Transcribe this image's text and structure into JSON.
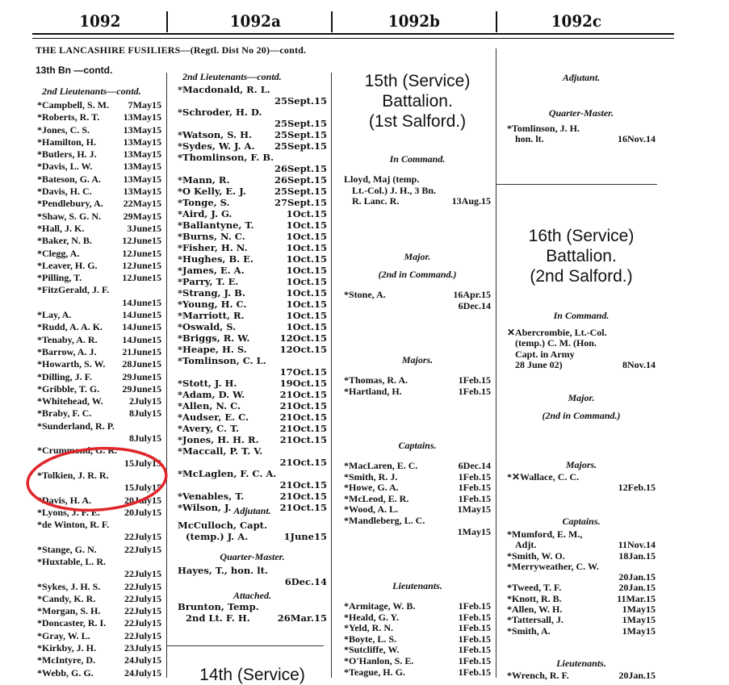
{
  "header": {
    "pages": [
      "1092",
      "1092a",
      "1092b",
      "1092c"
    ]
  },
  "regiment_title": "THE LANCASHIRE FUSILIERS—(Regtl. Dist No 20)—contd.",
  "battalion_contd": "13th Bn —contd.",
  "annotation": {
    "type": "red-ellipse",
    "color": "#e0262b",
    "encircles": "Tolkien, J. R. R."
  },
  "columns": [
    {
      "blocks": [
        {
          "type": "head",
          "text": "2nd Lieutenants—contd.",
          "left": true
        },
        {
          "type": "entries",
          "items": [
            {
              "n": "*Campbell, S. M.",
              "d": "7May15"
            },
            {
              "n": "*Roberts, R. T.",
              "d": "13May15"
            },
            {
              "n": "*Jones, C. S.",
              "d": "13May15"
            },
            {
              "n": "*Hamilton, H.",
              "d": "13May15"
            },
            {
              "n": "*Butlers, H. J.",
              "d": "13May15"
            },
            {
              "n": "*Davis, L. W.",
              "d": "13May15"
            },
            {
              "n": "*Bateson, G. A.",
              "d": "13May15"
            },
            {
              "n": "*Davis, H. C.",
              "d": "13May15"
            },
            {
              "n": "*Pendlebury, A.",
              "d": "22May15"
            },
            {
              "n": "*Shaw, S. G. N.",
              "d": "29May15"
            },
            {
              "n": "*Hall, J. K.",
              "d": "3June15"
            },
            {
              "n": "*Baker, N. B.",
              "d": "12June15"
            },
            {
              "n": "*Clegg, A.",
              "d": "12June15"
            },
            {
              "n": "*Leaver, H. G.",
              "d": "12June15"
            },
            {
              "n": "*Pilling, T.",
              "d": "12June15"
            },
            {
              "n": "*FitzGerald, J. F.",
              "d": "14June15",
              "w": true
            },
            {
              "n": "*Lay, A.",
              "d": "14June15"
            },
            {
              "n": "*Rudd, A. A. K.",
              "d": "14June15"
            },
            {
              "n": "*Tenaby, A. R.",
              "d": "14June15"
            },
            {
              "n": "*Barrow, A. J.",
              "d": "21June15"
            },
            {
              "n": "*Howarth, S. W.",
              "d": "28June15"
            },
            {
              "n": "*Dilling, J. F.",
              "d": "29June15"
            },
            {
              "n": "*Gribble, T. G.",
              "d": "29June15"
            },
            {
              "n": "*Whitehead, W.",
              "d": "2July15"
            },
            {
              "n": "*Braby, F. C.",
              "d": "8July15"
            },
            {
              "n": "*Sunderland, R. P.",
              "d": "8July15",
              "w": true
            },
            {
              "n": "*Crummond, G. R.",
              "d": "15July15",
              "w": true
            },
            {
              "n": "*Tolkien, J. R. R.",
              "d": "15July15",
              "w": true
            },
            {
              "n": "*Davis, H. A.",
              "d": "20July15"
            },
            {
              "n": "*Lyons, J. F. E.",
              "d": "20July15"
            },
            {
              "n": "*de Winton, R. F.",
              "d": "22July15",
              "w": true
            },
            {
              "n": "*Stange, G. N.",
              "d": "22July15"
            },
            {
              "n": "*Huxtable, L. R.",
              "d": "22July15",
              "w": true
            },
            {
              "n": "*Sykes, J. H. S.",
              "d": "22July15"
            },
            {
              "n": "*Candy, K. R.",
              "d": "22July15"
            },
            {
              "n": "*Morgan, S. H.",
              "d": "22July15"
            },
            {
              "n": "*Doncaster, R. I.",
              "d": "22July15"
            },
            {
              "n": "*Gray, W. L.",
              "d": "22July15"
            },
            {
              "n": "*Kirkby, J. H.",
              "d": "23July15"
            },
            {
              "n": "*McIntyre, D.",
              "d": "24July15"
            },
            {
              "n": "*Webb, G. G.",
              "d": "24July15"
            }
          ]
        }
      ]
    },
    {
      "blocks": [
        {
          "type": "head",
          "text": "2nd Lieutenants—contd.",
          "left": true
        },
        {
          "type": "entries",
          "items": [
            {
              "n": "*Macdonald, R. L.",
              "d": "25Sept.15",
              "w": true
            },
            {
              "n": "*Schroder, H. D.",
              "d": "25Sept.15",
              "w": true
            },
            {
              "n": "*Watson, S. H.",
              "d": "25Sept.15"
            },
            {
              "n": "*Sydes, W. J. A.",
              "d": "25Sept.15"
            },
            {
              "n": "*Thomlinson, F. B.",
              "d": "26Sept.15",
              "w": true
            },
            {
              "n": "*Mann, R.",
              "d": "26Sept.15"
            },
            {
              "n": "*O Kelly, E. J.",
              "d": "25Sept.15"
            },
            {
              "n": "*Tonge, S.",
              "d": "27Sept.15"
            },
            {
              "n": "*Aird, J. G.",
              "d": "1Oct.15"
            },
            {
              "n": "*Ballantyne, T.",
              "d": "1Oct.15"
            },
            {
              "n": "*Burns, N. C.",
              "d": "1Oct.15"
            },
            {
              "n": "*Fisher, H. N.",
              "d": "1Oct.15"
            },
            {
              "n": "*Hughes, B. E.",
              "d": "1Oct.15"
            },
            {
              "n": "*James, E. A.",
              "d": "1Oct.15"
            },
            {
              "n": "*Parry, T. E.",
              "d": "1Oct.15"
            },
            {
              "n": "*Strang, J. B.",
              "d": "1Oct.15"
            },
            {
              "n": "*Young, H. C.",
              "d": "1Oct.15"
            },
            {
              "n": "*Marriott, R.",
              "d": "1Oct.15"
            },
            {
              "n": "*Oswald, S.",
              "d": "1Oct.15"
            },
            {
              "n": "*Briggs, R. W.",
              "d": "12Oct.15"
            },
            {
              "n": "*Heape, H. S.",
              "d": "12Oct.15"
            },
            {
              "n": "*Tomlinson, C. L.",
              "d": "17Oct.15",
              "w": true
            },
            {
              "n": "*Stott, J. H.",
              "d": "19Oct.15"
            },
            {
              "n": "*Adam, D. W.",
              "d": "21Oct.15"
            },
            {
              "n": "*Allen, N. C.",
              "d": "21Oct.15"
            },
            {
              "n": "*Audser, E. C.",
              "d": "21Oct.15"
            },
            {
              "n": "*Avery, C. T.",
              "d": "21Oct.15"
            },
            {
              "n": "*Jones, H. H. R.",
              "d": "21Oct.15"
            },
            {
              "n": "*Maccall, P. T. V.",
              "d": "21Oct.15",
              "w": true
            },
            {
              "n": "*McLaglen, F. C. A.",
              "d": "21Oct.15",
              "w": true
            },
            {
              "n": "*Venables, T.",
              "d": "21Oct.15"
            },
            {
              "n": "*Wilson, J.",
              "d": "21Oct.15"
            }
          ]
        },
        {
          "type": "head",
          "text": "Adjutant."
        },
        {
          "type": "entries",
          "items": [
            {
              "n": "McCulloch, Capt.",
              "d": ""
            },
            {
              "n": "(temp.) J. A.",
              "d": "1June15",
              "i": true
            }
          ]
        },
        {
          "type": "head",
          "text": "Quarter-Master."
        },
        {
          "type": "entries",
          "items": [
            {
              "n": "Hayes, T., hon. lt.",
              "d": "6Dec.14",
              "w": true
            }
          ]
        },
        {
          "type": "head",
          "text": "Attached."
        },
        {
          "type": "entries",
          "items": [
            {
              "n": "Brunton, Temp.",
              "d": ""
            },
            {
              "n": "2nd Lt. F. H.",
              "d": "26Mar.15",
              "i": true
            }
          ]
        },
        {
          "type": "big",
          "lines": [
            "14th (Service)"
          ]
        }
      ]
    },
    {
      "blocks": [
        {
          "type": "big",
          "lines": [
            "15th (Service)",
            "Battalion.",
            "(1st Salford.)"
          ]
        },
        {
          "type": "head",
          "text": "In Command."
        },
        {
          "type": "entries",
          "items": [
            {
              "n": "Lloyd, Maj (temp.",
              "d": ""
            },
            {
              "n": "Lt.-Col.) J. H., 3 Bn.",
              "d": "",
              "i": true
            },
            {
              "n": "R. Lanc. R.",
              "d": "13Aug.15",
              "i": true
            }
          ]
        },
        {
          "type": "head",
          "text": "Major."
        },
        {
          "type": "head",
          "text": "(2nd in Command.)"
        },
        {
          "type": "entries",
          "items": [
            {
              "n": "*Stone, A.",
              "d": "16Apr.15"
            },
            {
              "n": "",
              "d": "6Dec.14"
            }
          ]
        },
        {
          "type": "head",
          "text": "Majors."
        },
        {
          "type": "entries",
          "items": [
            {
              "n": "*Thomas, R. A.",
              "d": "1Feb.15"
            },
            {
              "n": "*Hartland, H.",
              "d": "1Feb.15"
            }
          ]
        },
        {
          "type": "head",
          "text": "Captains."
        },
        {
          "type": "entries",
          "items": [
            {
              "n": "*MacLaren, E. C.",
              "d": "6Dec.14"
            },
            {
              "n": "*Smith, R. J.",
              "d": "1Feb.15"
            },
            {
              "n": "*Howe, G. A.",
              "d": "1Feb.15"
            },
            {
              "n": "*McLeod, E. R.",
              "d": "1Feb.15"
            },
            {
              "n": "*Wood, A. L.",
              "d": "1May15"
            },
            {
              "n": "*Mandleberg, L. C.",
              "d": "1May15",
              "w": true
            }
          ]
        },
        {
          "type": "head",
          "text": "Lieutenants."
        },
        {
          "type": "entries",
          "items": [
            {
              "n": "*Armitage, W. B.",
              "d": "1Feb.15"
            },
            {
              "n": "*Heald, G. Y.",
              "d": "1Feb.15"
            },
            {
              "n": "*Yeld, R. N.",
              "d": "1Feb.15"
            },
            {
              "n": "*Boyte, L. S.",
              "d": "1Feb.15"
            },
            {
              "n": "*Sutcliffe, W.",
              "d": "1Feb.15"
            },
            {
              "n": "*O'Hanlon, S. E.",
              "d": "1Feb.15"
            },
            {
              "n": "*Teague, H. G.",
              "d": "1Feb.15"
            }
          ]
        }
      ]
    },
    {
      "blocks": [
        {
          "type": "head",
          "text": "Adjutant."
        },
        {
          "type": "head",
          "text": "Quarter-Master."
        },
        {
          "type": "entries",
          "items": [
            {
              "n": "*Tomlinson, J. H.",
              "d": ""
            },
            {
              "n": "hon. lt.",
              "d": "16Nov.14",
              "i": true
            }
          ]
        },
        {
          "type": "big",
          "lines": [
            "16th (Service)",
            "Battalion.",
            "(2nd Salford.)"
          ]
        },
        {
          "type": "head",
          "text": "In Command."
        },
        {
          "type": "entries",
          "items": [
            {
              "n": "✕Abercrombie, Lt.-Col.",
              "d": ""
            },
            {
              "n": "(temp.) C. M. (Hon.",
              "d": "",
              "i": true
            },
            {
              "n": "Capt. in Army",
              "d": "",
              "i": true
            },
            {
              "n": "28 June 02)",
              "d": "8Nov.14",
              "i": true
            }
          ]
        },
        {
          "type": "head",
          "text": "Major."
        },
        {
          "type": "head",
          "text": "(2nd in Command.)"
        },
        {
          "type": "head",
          "text": "Majors."
        },
        {
          "type": "entries",
          "items": [
            {
              "n": "*✕Wallace, C. C.",
              "d": "12Feb.15",
              "w": true
            }
          ]
        },
        {
          "type": "head",
          "text": "Captains."
        },
        {
          "type": "entries",
          "items": [
            {
              "n": "*Mumford, E. M.,",
              "d": ""
            },
            {
              "n": "Adjt.",
              "d": "11Nov.14",
              "i": true
            },
            {
              "n": "*Smith, W. O.",
              "d": "18Jan.15"
            },
            {
              "n": "*Merryweather, C. W.",
              "d": "20Jan.15",
              "w": true
            },
            {
              "n": "*Tweed, T. F.",
              "d": "20Jan.15"
            },
            {
              "n": "*Knott, R. B.",
              "d": "11Mar.15"
            },
            {
              "n": "*Allen, W. H.",
              "d": "1May15"
            },
            {
              "n": "*Tattersall, J.",
              "d": "1May15"
            },
            {
              "n": "*Smith, A.",
              "d": "1May15"
            }
          ]
        },
        {
          "type": "head",
          "text": "Lieutenants."
        },
        {
          "type": "entries",
          "items": [
            {
              "n": "*Wrench, R. F.",
              "d": "20Jan.15"
            }
          ]
        }
      ]
    }
  ]
}
